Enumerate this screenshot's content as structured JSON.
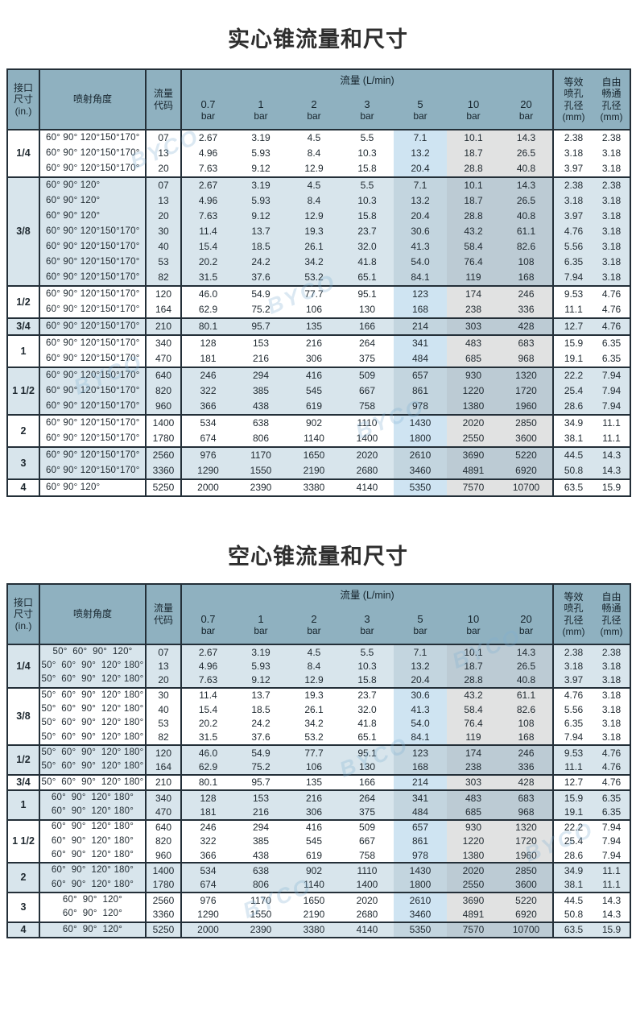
{
  "page": {
    "watermark_text": "BYCO"
  },
  "colors": {
    "header_bg": "#8fb1c0",
    "row_alt": "#d8e5ec",
    "tint_blue": "#cfe4f2",
    "tint_gray": "#e1e2e2",
    "tint_blue_dark": "#c3d5df",
    "tint_gray_dark": "#bccbd4",
    "line": "#232f38",
    "text": "#1f2930",
    "watermark": "#7fb0d2"
  },
  "header": {
    "port_label": "接口\n尺寸\n(in.)",
    "angle_label": "喷射角度",
    "code_label": "流量\n代码",
    "flow_label": "流量 (L/min)",
    "pressures": [
      "0.7",
      "1",
      "2",
      "3",
      "5",
      "10",
      "20"
    ],
    "bar_unit": "bar",
    "equiv_label": "等效\n喷孔\n孔径\n(mm)",
    "free_label": "自由\n畅通\n孔径\n(mm)"
  },
  "tables": [
    {
      "title": "实心锥流量和尺寸",
      "groups": [
        {
          "size": "1/4",
          "rows": [
            {
              "angle": "60° 90° 120°150°170°",
              "code": "07",
              "flows": [
                "2.67",
                "3.19",
                "4.5",
                "5.5",
                "7.1",
                "10.1",
                "14.3"
              ],
              "equiv": "2.38",
              "free": "2.38"
            },
            {
              "angle": "60° 90° 120°150°170°",
              "code": "13",
              "flows": [
                "4.96",
                "5.93",
                "8.4",
                "10.3",
                "13.2",
                "18.7",
                "26.5"
              ],
              "equiv": "3.18",
              "free": "3.18"
            },
            {
              "angle": "60° 90° 120°150°170°",
              "code": "20",
              "flows": [
                "7.63",
                "9.12",
                "12.9",
                "15.8",
                "20.4",
                "28.8",
                "40.8"
              ],
              "equiv": "3.97",
              "free": "3.18"
            }
          ]
        },
        {
          "size": "3/8",
          "rows": [
            {
              "angle": "60° 90° 120°",
              "code": "07",
              "flows": [
                "2.67",
                "3.19",
                "4.5",
                "5.5",
                "7.1",
                "10.1",
                "14.3"
              ],
              "equiv": "2.38",
              "free": "2.38"
            },
            {
              "angle": "60° 90° 120°",
              "code": "13",
              "flows": [
                "4.96",
                "5.93",
                "8.4",
                "10.3",
                "13.2",
                "18.7",
                "26.5"
              ],
              "equiv": "3.18",
              "free": "3.18"
            },
            {
              "angle": "60° 90° 120°",
              "code": "20",
              "flows": [
                "7.63",
                "9.12",
                "12.9",
                "15.8",
                "20.4",
                "28.8",
                "40.8"
              ],
              "equiv": "3.97",
              "free": "3.18"
            },
            {
              "angle": "60° 90° 120°150°170°",
              "code": "30",
              "flows": [
                "11.4",
                "13.7",
                "19.3",
                "23.7",
                "30.6",
                "43.2",
                "61.1"
              ],
              "equiv": "4.76",
              "free": "3.18"
            },
            {
              "angle": "60° 90° 120°150°170°",
              "code": "40",
              "flows": [
                "15.4",
                "18.5",
                "26.1",
                "32.0",
                "41.3",
                "58.4",
                "82.6"
              ],
              "equiv": "5.56",
              "free": "3.18"
            },
            {
              "angle": "60° 90° 120°150°170°",
              "code": "53",
              "flows": [
                "20.2",
                "24.2",
                "34.2",
                "41.8",
                "54.0",
                "76.4",
                "108"
              ],
              "equiv": "6.35",
              "free": "3.18"
            },
            {
              "angle": "60° 90° 120°150°170°",
              "code": "82",
              "flows": [
                "31.5",
                "37.6",
                "53.2",
                "65.1",
                "84.1",
                "119",
                "168"
              ],
              "equiv": "7.94",
              "free": "3.18"
            }
          ]
        },
        {
          "size": "1/2",
          "rows": [
            {
              "angle": "60° 90° 120°150°170°",
              "code": "120",
              "flows": [
                "46.0",
                "54.9",
                "77.7",
                "95.1",
                "123",
                "174",
                "246"
              ],
              "equiv": "9.53",
              "free": "4.76"
            },
            {
              "angle": "60° 90° 120°150°170°",
              "code": "164",
              "flows": [
                "62.9",
                "75.2",
                "106",
                "130",
                "168",
                "238",
                "336"
              ],
              "equiv": "11.1",
              "free": "4.76"
            }
          ]
        },
        {
          "size": "3/4",
          "rows": [
            {
              "angle": "60° 90° 120°150°170°",
              "code": "210",
              "flows": [
                "80.1",
                "95.7",
                "135",
                "166",
                "214",
                "303",
                "428"
              ],
              "equiv": "12.7",
              "free": "4.76"
            }
          ]
        },
        {
          "size": "1",
          "rows": [
            {
              "angle": "60° 90° 120°150°170°",
              "code": "340",
              "flows": [
                "128",
                "153",
                "216",
                "264",
                "341",
                "483",
                "683"
              ],
              "equiv": "15.9",
              "free": "6.35"
            },
            {
              "angle": "60° 90° 120°150°170°",
              "code": "470",
              "flows": [
                "181",
                "216",
                "306",
                "375",
                "484",
                "685",
                "968"
              ],
              "equiv": "19.1",
              "free": "6.35"
            }
          ]
        },
        {
          "size": "1 1/2",
          "rows": [
            {
              "angle": "60° 90° 120°150°170°",
              "code": "640",
              "flows": [
                "246",
                "294",
                "416",
                "509",
                "657",
                "930",
                "1320"
              ],
              "equiv": "22.2",
              "free": "7.94"
            },
            {
              "angle": "60° 90° 120°150°170°",
              "code": "820",
              "flows": [
                "322",
                "385",
                "545",
                "667",
                "861",
                "1220",
                "1720"
              ],
              "equiv": "25.4",
              "free": "7.94"
            },
            {
              "angle": "60° 90° 120°150°170°",
              "code": "960",
              "flows": [
                "366",
                "438",
                "619",
                "758",
                "978",
                "1380",
                "1960"
              ],
              "equiv": "28.6",
              "free": "7.94"
            }
          ]
        },
        {
          "size": "2",
          "rows": [
            {
              "angle": "60° 90° 120°150°170°",
              "code": "1400",
              "flows": [
                "534",
                "638",
                "902",
                "1110",
                "1430",
                "2020",
                "2850"
              ],
              "equiv": "34.9",
              "free": "11.1"
            },
            {
              "angle": "60° 90° 120°150°170°",
              "code": "1780",
              "flows": [
                "674",
                "806",
                "1140",
                "1400",
                "1800",
                "2550",
                "3600"
              ],
              "equiv": "38.1",
              "free": "11.1"
            }
          ]
        },
        {
          "size": "3",
          "rows": [
            {
              "angle": "60° 90° 120°150°170°",
              "code": "2560",
              "flows": [
                "976",
                "1170",
                "1650",
                "2020",
                "2610",
                "3690",
                "5220"
              ],
              "equiv": "44.5",
              "free": "14.3"
            },
            {
              "angle": "60° 90° 120°150°170°",
              "code": "3360",
              "flows": [
                "1290",
                "1550",
                "2190",
                "2680",
                "3460",
                "4891",
                "6920"
              ],
              "equiv": "50.8",
              "free": "14.3"
            }
          ]
        },
        {
          "size": "4",
          "rows": [
            {
              "angle": "60° 90° 120°",
              "code": "5250",
              "flows": [
                "2000",
                "2390",
                "3380",
                "4140",
                "5350",
                "7570",
                "10700"
              ],
              "equiv": "63.5",
              "free": "15.9"
            }
          ]
        }
      ]
    },
    {
      "title": "空心锥流量和尺寸",
      "groups": [
        {
          "size": "1/4",
          "rows": [
            {
              "angle": "50°  60°  90°  120°",
              "code": "07",
              "flows": [
                "2.67",
                "3.19",
                "4.5",
                "5.5",
                "7.1",
                "10.1",
                "14.3"
              ],
              "equiv": "2.38",
              "free": "2.38"
            },
            {
              "angle": "50°  60°  90°  120° 180°",
              "code": "13",
              "flows": [
                "4.96",
                "5.93",
                "8.4",
                "10.3",
                "13.2",
                "18.7",
                "26.5"
              ],
              "equiv": "3.18",
              "free": "3.18"
            },
            {
              "angle": "50°  60°  90°  120° 180°",
              "code": "20",
              "flows": [
                "7.63",
                "9.12",
                "12.9",
                "15.8",
                "20.4",
                "28.8",
                "40.8"
              ],
              "equiv": "3.97",
              "free": "3.18"
            }
          ]
        },
        {
          "size": "3/8",
          "rows": [
            {
              "angle": "50°  60°  90°  120° 180°",
              "code": "30",
              "flows": [
                "11.4",
                "13.7",
                "19.3",
                "23.7",
                "30.6",
                "43.2",
                "61.1"
              ],
              "equiv": "4.76",
              "free": "3.18"
            },
            {
              "angle": "50°  60°  90°  120° 180°",
              "code": "40",
              "flows": [
                "15.4",
                "18.5",
                "26.1",
                "32.0",
                "41.3",
                "58.4",
                "82.6"
              ],
              "equiv": "5.56",
              "free": "3.18"
            },
            {
              "angle": "50°  60°  90°  120° 180°",
              "code": "53",
              "flows": [
                "20.2",
                "24.2",
                "34.2",
                "41.8",
                "54.0",
                "76.4",
                "108"
              ],
              "equiv": "6.35",
              "free": "3.18"
            },
            {
              "angle": "50°  60°  90°  120° 180°",
              "code": "82",
              "flows": [
                "31.5",
                "37.6",
                "53.2",
                "65.1",
                "84.1",
                "119",
                "168"
              ],
              "equiv": "7.94",
              "free": "3.18"
            }
          ]
        },
        {
          "size": "1/2",
          "rows": [
            {
              "angle": "50°  60°  90°  120° 180°",
              "code": "120",
              "flows": [
                "46.0",
                "54.9",
                "77.7",
                "95.1",
                "123",
                "174",
                "246"
              ],
              "equiv": "9.53",
              "free": "4.76"
            },
            {
              "angle": "50°  60°  90°  120° 180°",
              "code": "164",
              "flows": [
                "62.9",
                "75.2",
                "106",
                "130",
                "168",
                "238",
                "336"
              ],
              "equiv": "11.1",
              "free": "4.76"
            }
          ]
        },
        {
          "size": "3/4",
          "rows": [
            {
              "angle": "50°  60°  90°  120° 180°",
              "code": "210",
              "flows": [
                "80.1",
                "95.7",
                "135",
                "166",
                "214",
                "303",
                "428"
              ],
              "equiv": "12.7",
              "free": "4.76"
            }
          ]
        },
        {
          "size": "1",
          "rows": [
            {
              "angle": "60°  90°  120° 180°",
              "code": "340",
              "flows": [
                "128",
                "153",
                "216",
                "264",
                "341",
                "483",
                "683"
              ],
              "equiv": "15.9",
              "free": "6.35"
            },
            {
              "angle": "60°  90°  120° 180°",
              "code": "470",
              "flows": [
                "181",
                "216",
                "306",
                "375",
                "484",
                "685",
                "968"
              ],
              "equiv": "19.1",
              "free": "6.35"
            }
          ]
        },
        {
          "size": "1 1/2",
          "rows": [
            {
              "angle": "60°  90°  120° 180°",
              "code": "640",
              "flows": [
                "246",
                "294",
                "416",
                "509",
                "657",
                "930",
                "1320"
              ],
              "equiv": "22.2",
              "free": "7.94"
            },
            {
              "angle": "60°  90°  120° 180°",
              "code": "820",
              "flows": [
                "322",
                "385",
                "545",
                "667",
                "861",
                "1220",
                "1720"
              ],
              "equiv": "25.4",
              "free": "7.94"
            },
            {
              "angle": "60°  90°  120° 180°",
              "code": "960",
              "flows": [
                "366",
                "438",
                "619",
                "758",
                "978",
                "1380",
                "1960"
              ],
              "equiv": "28.6",
              "free": "7.94"
            }
          ]
        },
        {
          "size": "2",
          "rows": [
            {
              "angle": "60°  90°  120° 180°",
              "code": "1400",
              "flows": [
                "534",
                "638",
                "902",
                "1110",
                "1430",
                "2020",
                "2850"
              ],
              "equiv": "34.9",
              "free": "11.1"
            },
            {
              "angle": "60°  90°  120° 180°",
              "code": "1780",
              "flows": [
                "674",
                "806",
                "1140",
                "1400",
                "1800",
                "2550",
                "3600"
              ],
              "equiv": "38.1",
              "free": "11.1"
            }
          ]
        },
        {
          "size": "3",
          "rows": [
            {
              "angle": "60°  90°  120°",
              "code": "2560",
              "flows": [
                "976",
                "1170",
                "1650",
                "2020",
                "2610",
                "3690",
                "5220"
              ],
              "equiv": "44.5",
              "free": "14.3"
            },
            {
              "angle": "60°  90°  120°",
              "code": "3360",
              "flows": [
                "1290",
                "1550",
                "2190",
                "2680",
                "3460",
                "4891",
                "6920"
              ],
              "equiv": "50.8",
              "free": "14.3"
            }
          ]
        },
        {
          "size": "4",
          "rows": [
            {
              "angle": "60°  90°  120°",
              "code": "5250",
              "flows": [
                "2000",
                "2390",
                "3380",
                "4140",
                "5350",
                "7570",
                "10700"
              ],
              "equiv": "63.5",
              "free": "15.9"
            }
          ]
        }
      ]
    }
  ]
}
